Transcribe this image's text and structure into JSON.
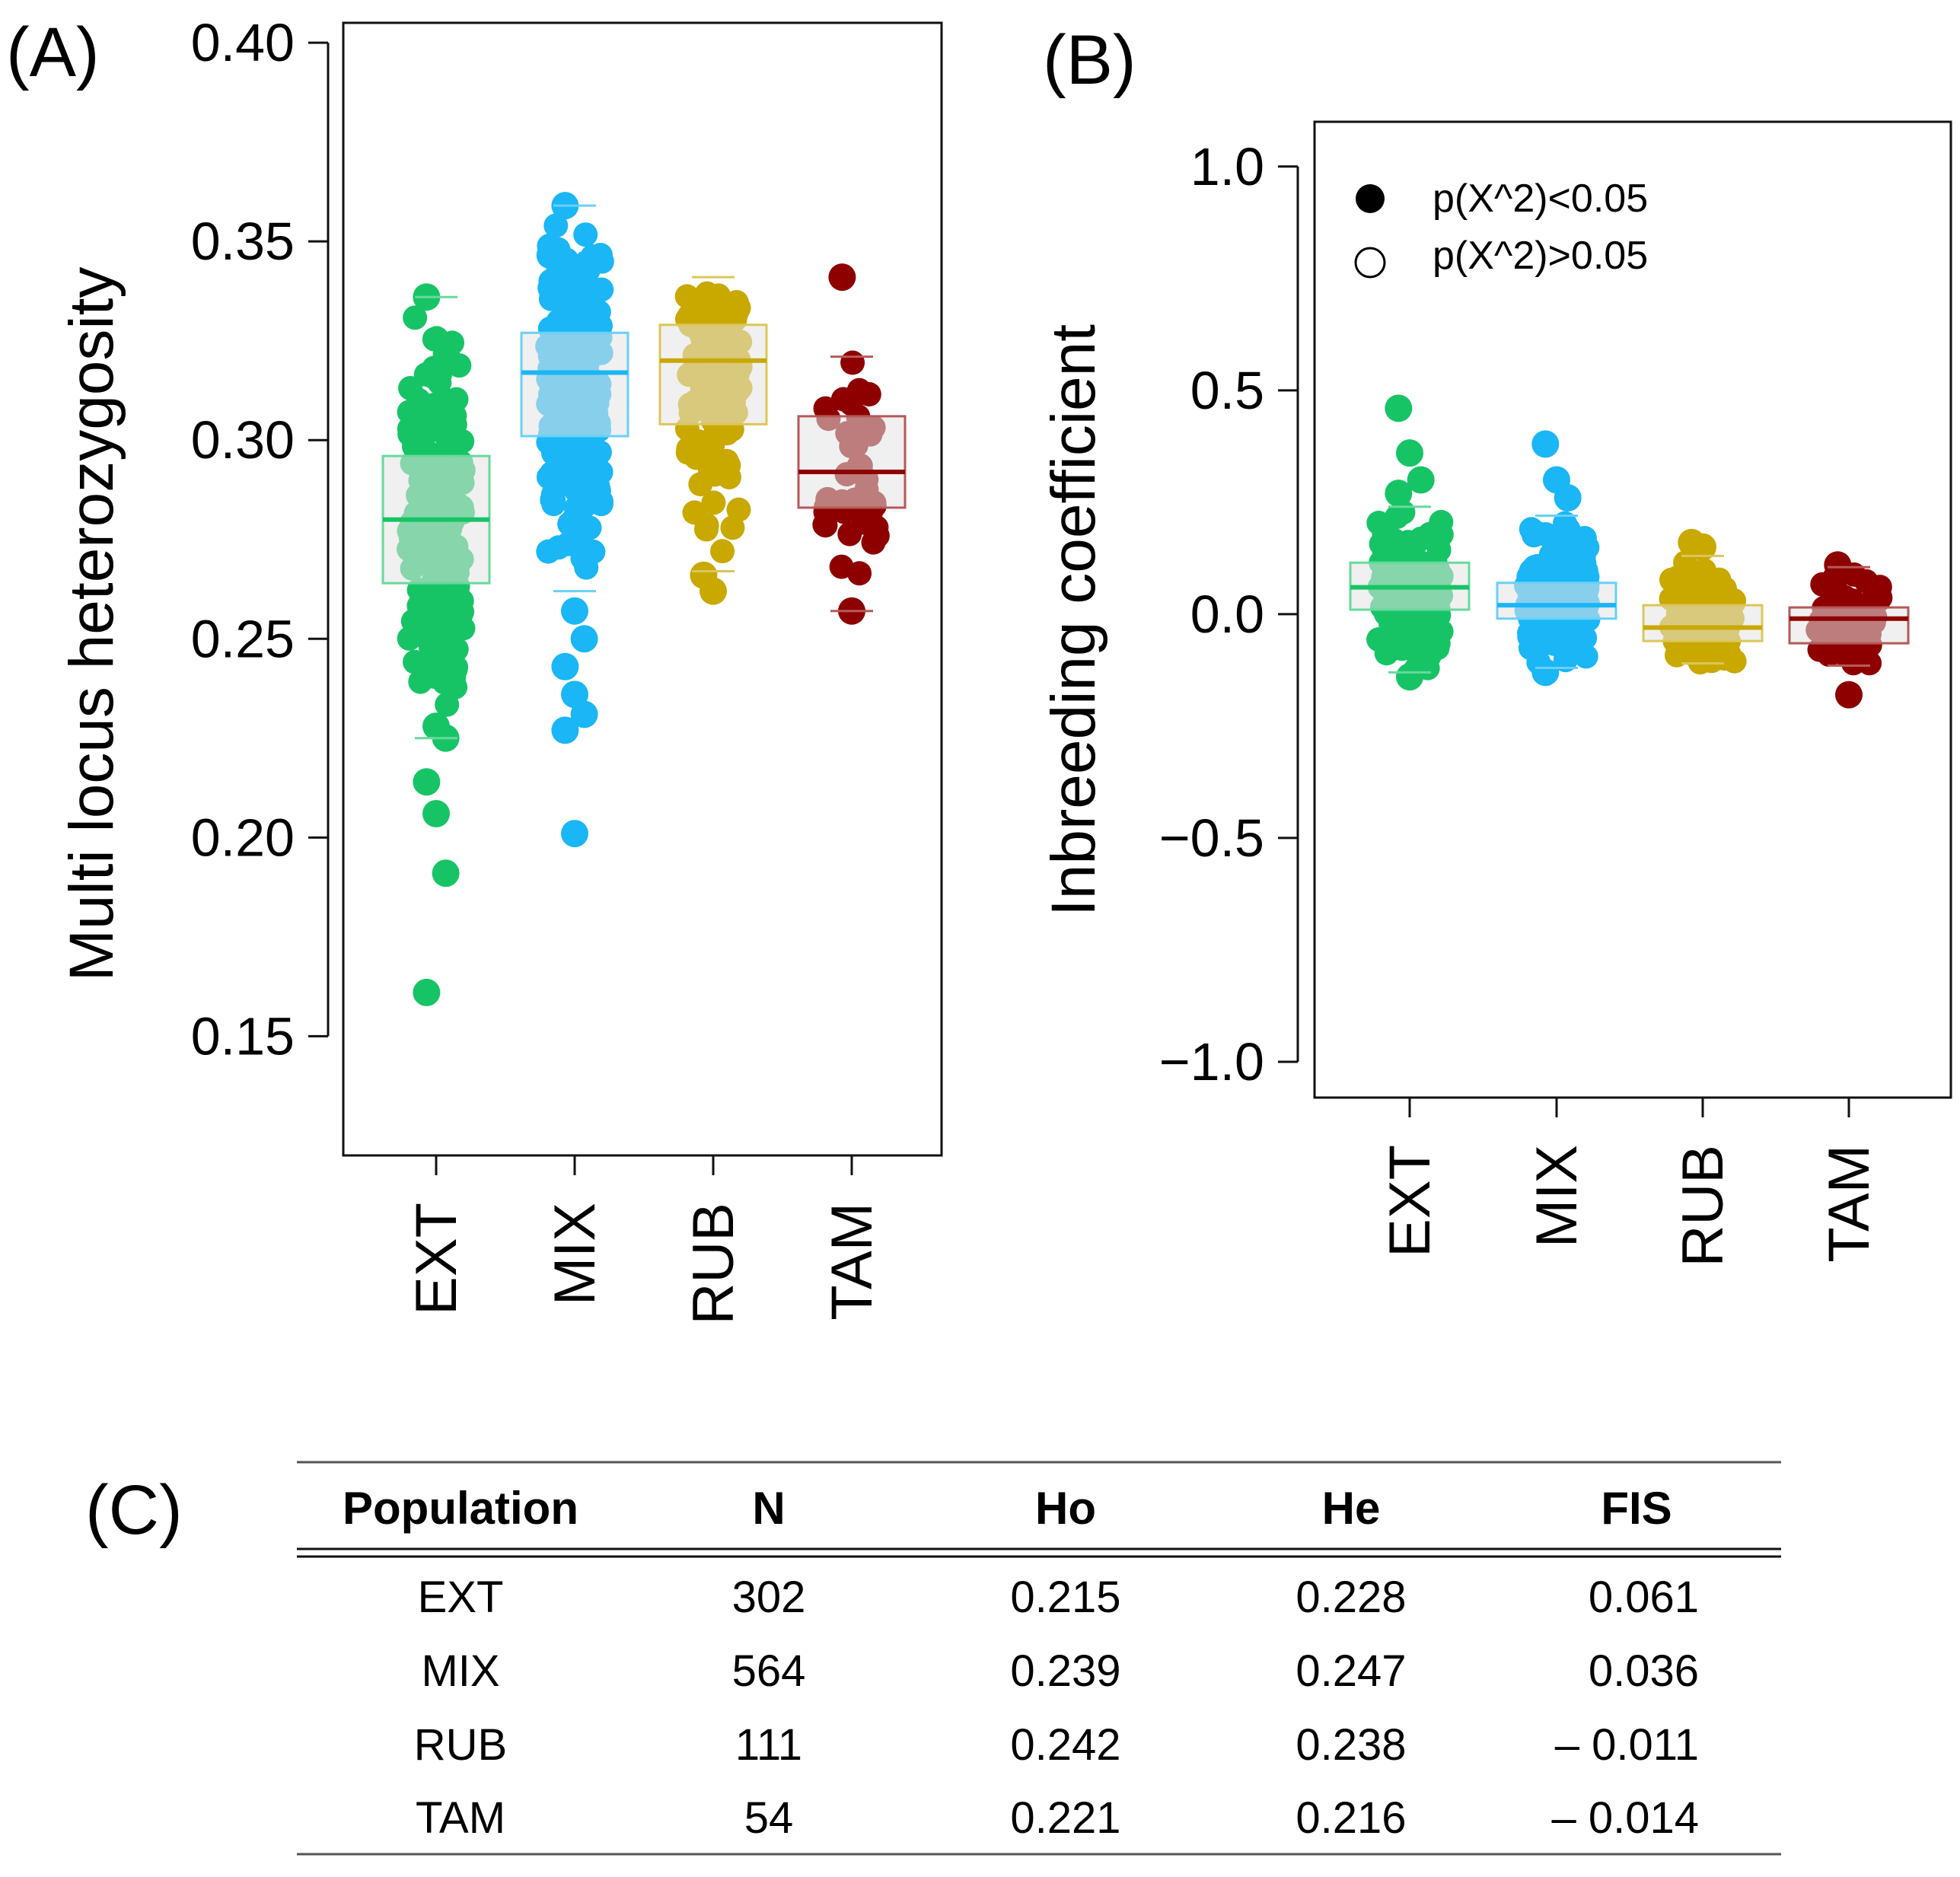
{
  "chart_data": [
    {
      "panel_label": "(A)",
      "type": "box",
      "ylabel": "Multi locus heterozygosity",
      "ylim": [
        0.12,
        0.405
      ],
      "yticks": [
        "0.15",
        "0.20",
        "0.25",
        "0.30",
        "0.35",
        "0.40"
      ],
      "ytick_values": [
        0.15,
        0.2,
        0.25,
        0.3,
        0.35,
        0.4
      ],
      "categories": [
        "EXT",
        "MIX",
        "RUB",
        "TAM"
      ],
      "colors": [
        "#16c466",
        "#1ab6f5",
        "#c9a800",
        "#8e0000"
      ],
      "box_fill": "#e4e4e4",
      "boxes": [
        {
          "q1": 0.264,
          "median": 0.28,
          "q3": 0.296,
          "whisker_low": 0.225,
          "whisker_high": 0.336
        },
        {
          "q1": 0.301,
          "median": 0.317,
          "q3": 0.327,
          "whisker_low": 0.262,
          "whisker_high": 0.359
        },
        {
          "q1": 0.304,
          "median": 0.32,
          "q3": 0.329,
          "whisker_low": 0.267,
          "whisker_high": 0.341
        },
        {
          "q1": 0.283,
          "median": 0.292,
          "q3": 0.306,
          "whisker_low": 0.257,
          "whisker_high": 0.321
        }
      ],
      "points": [
        {
          "n": 160,
          "min": 0.23,
          "max": 0.334,
          "outliers": [
            0.336,
            0.228,
            0.225,
            0.214,
            0.206,
            0.191,
            0.161
          ]
        },
        {
          "n": 220,
          "min": 0.262,
          "max": 0.356,
          "outliers": [
            0.359,
            0.257,
            0.25,
            0.243,
            0.236,
            0.231,
            0.227,
            0.201
          ]
        },
        {
          "n": 110,
          "min": 0.27,
          "max": 0.34,
          "outliers": [
            0.266,
            0.262
          ]
        },
        {
          "n": 40,
          "min": 0.262,
          "max": 0.321,
          "outliers": [
            0.341,
            0.257
          ]
        }
      ]
    },
    {
      "panel_label": "(B)",
      "type": "box",
      "ylabel": "Inbreeding coefficient",
      "ylim": [
        -1.08,
        1.1
      ],
      "yticks": [
        "−1.0",
        "−0.5",
        "0.0",
        "0.5",
        "1.0"
      ],
      "ytick_values": [
        -1.0,
        -0.5,
        0.0,
        0.5,
        1.0
      ],
      "categories": [
        "EXT",
        "MIX",
        "RUB",
        "TAM"
      ],
      "colors": [
        "#16c466",
        "#1ab6f5",
        "#c9a800",
        "#8e0000"
      ],
      "box_fill": "#e4e4e4",
      "boxes": [
        {
          "q1": 0.01,
          "median": 0.06,
          "q3": 0.115,
          "whisker_low": -0.13,
          "whisker_high": 0.24
        },
        {
          "q1": -0.01,
          "median": 0.02,
          "q3": 0.07,
          "whisker_low": -0.12,
          "whisker_high": 0.22
        },
        {
          "q1": -0.06,
          "median": -0.03,
          "q3": 0.02,
          "whisker_low": -0.11,
          "whisker_high": 0.13
        },
        {
          "q1": -0.065,
          "median": -0.01,
          "q3": 0.015,
          "whisker_low": -0.115,
          "whisker_high": 0.105
        }
      ],
      "points": [
        {
          "n": 170,
          "min": -0.13,
          "max": 0.24,
          "outliers": [
            0.46,
            0.36,
            0.3,
            0.27,
            -0.14
          ]
        },
        {
          "n": 220,
          "min": -0.12,
          "max": 0.22,
          "outliers": [
            0.38,
            0.3,
            0.26,
            -0.13
          ]
        },
        {
          "n": 90,
          "min": -0.11,
          "max": 0.13,
          "outliers": [
            0.16,
            0.15
          ]
        },
        {
          "n": 45,
          "min": -0.115,
          "max": 0.105,
          "outliers": [
            0.11,
            -0.18
          ]
        }
      ],
      "legend": {
        "position": "top-left",
        "entries": [
          {
            "label": "p(X^2)<0.05",
            "marker": "filled-circle"
          },
          {
            "label": "p(X^2)>0.05",
            "marker": "open-circle"
          }
        ]
      }
    },
    {
      "panel_label": "(C)",
      "type": "table",
      "columns": [
        "Population",
        "N",
        "Ho",
        "He",
        "FIS"
      ],
      "rows": [
        [
          "EXT",
          "302",
          "0.215",
          "0.228",
          "0.061"
        ],
        [
          "MIX",
          "564",
          "0.239",
          "0.247",
          "0.036"
        ],
        [
          "RUB",
          "111",
          "0.242",
          "0.238",
          "– 0.011"
        ],
        [
          "TAM",
          "54",
          "0.221",
          "0.216",
          "– 0.014"
        ]
      ]
    }
  ]
}
